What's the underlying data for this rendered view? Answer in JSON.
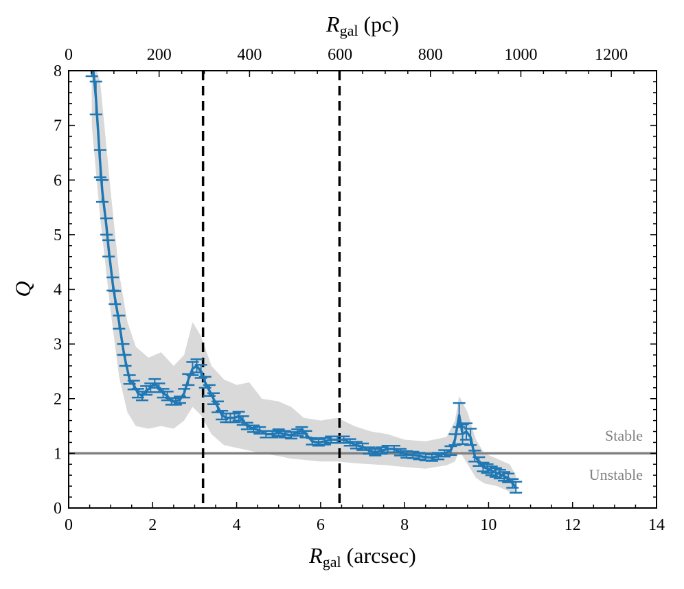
{
  "chart_data": {
    "type": "line",
    "bottom_axis": {
      "label_main": "R",
      "label_sub": "gal",
      "label_rest": " (arcsec)",
      "xlim": [
        0,
        14
      ],
      "ticks": [
        0,
        2,
        4,
        6,
        8,
        10,
        12,
        14
      ]
    },
    "top_axis": {
      "label_main": "R",
      "label_sub": "gal",
      "label_rest": " (pc)",
      "xlim": [
        0,
        1300
      ],
      "ticks": [
        0,
        200,
        400,
        600,
        800,
        1000,
        1200
      ]
    },
    "left_axis": {
      "label": "Q",
      "ylim": [
        0,
        8
      ],
      "ticks": [
        0,
        1,
        2,
        3,
        4,
        5,
        6,
        7,
        8
      ]
    },
    "reference_line": {
      "y": 1,
      "color": "#808080",
      "label_above": "Stable",
      "label_below": "Unstable"
    },
    "vertical_lines": [
      3.2,
      6.45
    ],
    "series_color": "#1f77b4",
    "band_color": "#d9d9d9",
    "series": [
      {
        "name": "Q",
        "points": [
          [
            0.55,
            8.3,
            0.4
          ],
          [
            0.65,
            7.5,
            0.3
          ],
          [
            0.75,
            6.3,
            0.25
          ],
          [
            0.8,
            5.8,
            0.2
          ],
          [
            0.9,
            5.15,
            0.15
          ],
          [
            0.95,
            4.75,
            0.15
          ],
          [
            1.05,
            4.1,
            0.12
          ],
          [
            1.1,
            3.85,
            0.12
          ],
          [
            1.2,
            3.4,
            0.12
          ],
          [
            1.3,
            2.9,
            0.1
          ],
          [
            1.35,
            2.7,
            0.1
          ],
          [
            1.45,
            2.35,
            0.08
          ],
          [
            1.55,
            2.25,
            0.08
          ],
          [
            1.65,
            2.1,
            0.08
          ],
          [
            1.75,
            2.05,
            0.08
          ],
          [
            1.85,
            2.15,
            0.08
          ],
          [
            1.95,
            2.2,
            0.08
          ],
          [
            2.05,
            2.28,
            0.08
          ],
          [
            2.15,
            2.2,
            0.08
          ],
          [
            2.25,
            2.1,
            0.08
          ],
          [
            2.35,
            2.05,
            0.08
          ],
          [
            2.45,
            1.95,
            0.06
          ],
          [
            2.55,
            1.95,
            0.06
          ],
          [
            2.65,
            1.98,
            0.06
          ],
          [
            2.75,
            2.1,
            0.08
          ],
          [
            2.85,
            2.35,
            0.1
          ],
          [
            2.95,
            2.55,
            0.12
          ],
          [
            3.05,
            2.6,
            0.12
          ],
          [
            3.15,
            2.5,
            0.12
          ],
          [
            3.25,
            2.3,
            0.1
          ],
          [
            3.35,
            2.15,
            0.1
          ],
          [
            3.45,
            2.0,
            0.1
          ],
          [
            3.55,
            1.85,
            0.1
          ],
          [
            3.65,
            1.7,
            0.08
          ],
          [
            3.75,
            1.65,
            0.08
          ],
          [
            3.85,
            1.65,
            0.08
          ],
          [
            3.95,
            1.65,
            0.08
          ],
          [
            4.05,
            1.68,
            0.08
          ],
          [
            4.15,
            1.6,
            0.08
          ],
          [
            4.25,
            1.5,
            0.06
          ],
          [
            4.4,
            1.45,
            0.06
          ],
          [
            4.55,
            1.42,
            0.06
          ],
          [
            4.7,
            1.35,
            0.06
          ],
          [
            4.85,
            1.35,
            0.06
          ],
          [
            5.0,
            1.38,
            0.06
          ],
          [
            5.15,
            1.35,
            0.06
          ],
          [
            5.3,
            1.33,
            0.06
          ],
          [
            5.45,
            1.38,
            0.06
          ],
          [
            5.55,
            1.42,
            0.06
          ],
          [
            5.65,
            1.35,
            0.06
          ],
          [
            5.8,
            1.22,
            0.06
          ],
          [
            5.95,
            1.2,
            0.06
          ],
          [
            6.1,
            1.22,
            0.06
          ],
          [
            6.25,
            1.25,
            0.06
          ],
          [
            6.4,
            1.25,
            0.06
          ],
          [
            6.55,
            1.25,
            0.06
          ],
          [
            6.7,
            1.2,
            0.06
          ],
          [
            6.85,
            1.15,
            0.06
          ],
          [
            7.0,
            1.12,
            0.06
          ],
          [
            7.15,
            1.05,
            0.06
          ],
          [
            7.3,
            1.02,
            0.06
          ],
          [
            7.45,
            1.05,
            0.06
          ],
          [
            7.6,
            1.08,
            0.06
          ],
          [
            7.75,
            1.08,
            0.06
          ],
          [
            7.9,
            1.02,
            0.06
          ],
          [
            8.05,
            0.98,
            0.06
          ],
          [
            8.2,
            0.97,
            0.06
          ],
          [
            8.35,
            0.95,
            0.06
          ],
          [
            8.5,
            0.93,
            0.06
          ],
          [
            8.65,
            0.92,
            0.06
          ],
          [
            8.8,
            0.95,
            0.06
          ],
          [
            8.95,
            1.0,
            0.06
          ],
          [
            9.1,
            1.05,
            0.08
          ],
          [
            9.2,
            1.25,
            0.1
          ],
          [
            9.3,
            1.7,
            0.22
          ],
          [
            9.38,
            1.35,
            0.18
          ],
          [
            9.47,
            1.4,
            0.15
          ],
          [
            9.57,
            1.3,
            0.15
          ],
          [
            9.67,
            0.95,
            0.1
          ],
          [
            9.77,
            0.85,
            0.08
          ],
          [
            9.87,
            0.75,
            0.08
          ],
          [
            9.97,
            0.72,
            0.08
          ],
          [
            10.07,
            0.68,
            0.08
          ],
          [
            10.17,
            0.65,
            0.08
          ],
          [
            10.27,
            0.62,
            0.08
          ],
          [
            10.37,
            0.58,
            0.08
          ],
          [
            10.47,
            0.55,
            0.08
          ],
          [
            10.57,
            0.45,
            0.08
          ],
          [
            10.65,
            0.38,
            0.1
          ]
        ],
        "band_upper": [
          [
            0.55,
            8.3
          ],
          [
            0.75,
            7.8
          ],
          [
            1.0,
            5.8
          ],
          [
            1.2,
            4.3
          ],
          [
            1.4,
            3.4
          ],
          [
            1.6,
            2.95
          ],
          [
            1.9,
            2.75
          ],
          [
            2.2,
            2.85
          ],
          [
            2.5,
            2.6
          ],
          [
            2.75,
            2.8
          ],
          [
            2.95,
            3.4
          ],
          [
            3.15,
            3.15
          ],
          [
            3.4,
            2.6
          ],
          [
            3.7,
            2.35
          ],
          [
            4.0,
            2.25
          ],
          [
            4.3,
            2.3
          ],
          [
            4.6,
            2.0
          ],
          [
            5.0,
            1.95
          ],
          [
            5.3,
            1.85
          ],
          [
            5.6,
            1.65
          ],
          [
            6.0,
            1.6
          ],
          [
            6.4,
            1.65
          ],
          [
            6.8,
            1.5
          ],
          [
            7.2,
            1.4
          ],
          [
            7.6,
            1.35
          ],
          [
            8.0,
            1.25
          ],
          [
            8.5,
            1.22
          ],
          [
            9.0,
            1.3
          ],
          [
            9.2,
            1.6
          ],
          [
            9.3,
            2.05
          ],
          [
            9.5,
            1.75
          ],
          [
            9.7,
            1.25
          ],
          [
            9.9,
            1.0
          ],
          [
            10.2,
            0.9
          ],
          [
            10.5,
            0.8
          ],
          [
            10.65,
            0.6
          ]
        ],
        "band_lower": [
          [
            10.65,
            0.25
          ],
          [
            10.5,
            0.3
          ],
          [
            10.2,
            0.4
          ],
          [
            9.9,
            0.45
          ],
          [
            9.7,
            0.55
          ],
          [
            9.5,
            0.8
          ],
          [
            9.3,
            1.05
          ],
          [
            9.2,
            0.85
          ],
          [
            9.0,
            0.78
          ],
          [
            8.5,
            0.72
          ],
          [
            8.0,
            0.75
          ],
          [
            7.6,
            0.78
          ],
          [
            7.2,
            0.8
          ],
          [
            6.8,
            0.82
          ],
          [
            6.4,
            0.85
          ],
          [
            6.0,
            0.85
          ],
          [
            5.6,
            0.88
          ],
          [
            5.3,
            0.9
          ],
          [
            5.0,
            0.95
          ],
          [
            4.6,
            1.0
          ],
          [
            4.3,
            1.05
          ],
          [
            4.0,
            1.1
          ],
          [
            3.7,
            1.15
          ],
          [
            3.4,
            1.35
          ],
          [
            3.15,
            1.7
          ],
          [
            2.95,
            1.85
          ],
          [
            2.75,
            1.6
          ],
          [
            2.5,
            1.45
          ],
          [
            2.2,
            1.5
          ],
          [
            1.9,
            1.45
          ],
          [
            1.6,
            1.5
          ],
          [
            1.4,
            1.75
          ],
          [
            1.2,
            2.4
          ],
          [
            1.0,
            3.6
          ],
          [
            0.75,
            5.3
          ],
          [
            0.55,
            7.0
          ]
        ]
      }
    ]
  }
}
